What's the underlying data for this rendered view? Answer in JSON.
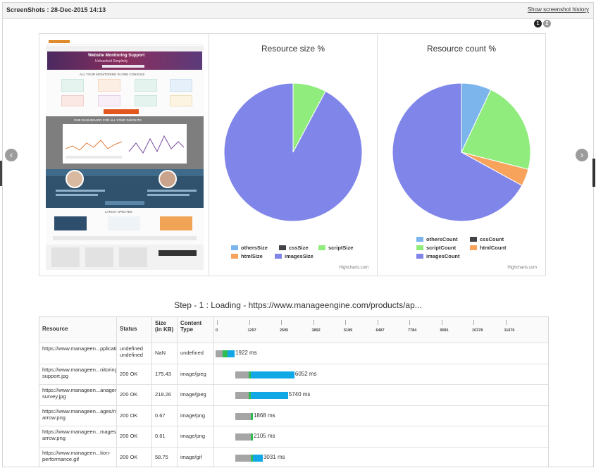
{
  "header": {
    "title": "ScreenShots : 28-Dec-2015 14:13",
    "history_link": "Show screenshot history"
  },
  "pager": [
    "1",
    "2"
  ],
  "nav": {
    "prev": "‹",
    "next": "›"
  },
  "thumbnail": {
    "banner_line1": "Website Monitoring Support",
    "banner_line2": "Unleashed Simplicity",
    "section1": "ALL YOUR MONITORING IN ONE CONSOLE",
    "section2": "ONE DASHBOARD FOR ALL YOUR INSIGHTS",
    "section3": "LATEST UPDATES"
  },
  "colors": {
    "others": "#7cb5ec",
    "css": "#434348",
    "script": "#90ed7d",
    "html": "#f7a35c",
    "images": "#8085e9",
    "wait": "#a5a5a5",
    "connect": "#2fbc52",
    "download": "#12a7e5"
  },
  "charts": {
    "size_title": "Resource size %",
    "count_title": "Resource count %",
    "credit": "Highcharts.com"
  },
  "chart_data": [
    {
      "type": "pie",
      "title": "Resource size %",
      "series": [
        {
          "name": "othersSize",
          "value": 0
        },
        {
          "name": "cssSize",
          "value": 0
        },
        {
          "name": "scriptSize",
          "value": 7.8
        },
        {
          "name": "htmlSize",
          "value": 0
        },
        {
          "name": "imagesSize",
          "value": 92.2
        }
      ],
      "legend_position": "bottom"
    },
    {
      "type": "pie",
      "title": "Resource count %",
      "series": [
        {
          "name": "othersCount",
          "value": 7
        },
        {
          "name": "cssCount",
          "value": 0
        },
        {
          "name": "scriptCount",
          "value": 22
        },
        {
          "name": "htmlCount",
          "value": 4
        },
        {
          "name": "imagesCount",
          "value": 67
        }
      ],
      "legend_position": "bottom"
    }
  ],
  "step_title": "Step - 1 : Loading - https://www.manageengine.com/products/ap...",
  "waterfall": {
    "headers": {
      "resource": "Resource",
      "status": "Status",
      "size": "Size (in KB)",
      "type": "Content Type"
    },
    "ticks": [
      "0",
      "1297",
      "2595",
      "3892",
      "5189",
      "6487",
      "7784",
      "9081",
      "10378",
      "11676"
    ],
    "max_ms": 12973,
    "rows": [
      {
        "resource": "https://www.manageen...pplications_manager/",
        "status": "undefined undefined",
        "size": "NaN",
        "type": "undefined",
        "start": 0,
        "wait": 280,
        "connect": 200,
        "download": 290,
        "total_label": "1922 ms"
      },
      {
        "resource": "https://www.manageen...nitoring-support.jpg",
        "status": "200 OK",
        "size": "175.43",
        "type": "image/jpeg",
        "start": 800,
        "wait": 550,
        "connect": 80,
        "download": 1760,
        "total_label": "6052 ms"
      },
      {
        "resource": "https://www.manageen...anagement-survey.jpg",
        "status": "200 OK",
        "size": "218.26",
        "type": "image/jpeg",
        "start": 800,
        "wait": 550,
        "connect": 80,
        "download": 1500,
        "total_label": "5740 ms"
      },
      {
        "resource": "https://www.manageen...ages/right-arrow.png",
        "status": "200 OK",
        "size": "0.67",
        "type": "image/png",
        "start": 800,
        "wait": 620,
        "connect": 90,
        "download": 0,
        "total_label": "1868 ms"
      },
      {
        "resource": "https://www.manageen...mages/left-arrow.png",
        "status": "200 OK",
        "size": "0.61",
        "type": "image/png",
        "start": 800,
        "wait": 620,
        "connect": 90,
        "download": 0,
        "total_label": "2105 ms"
      },
      {
        "resource": "https://www.manageen...tion-performance.gif",
        "status": "200 OK",
        "size": "58.75",
        "type": "image/gif",
        "start": 800,
        "wait": 620,
        "connect": 90,
        "download": 400,
        "total_label": "3031 ms"
      }
    ]
  }
}
